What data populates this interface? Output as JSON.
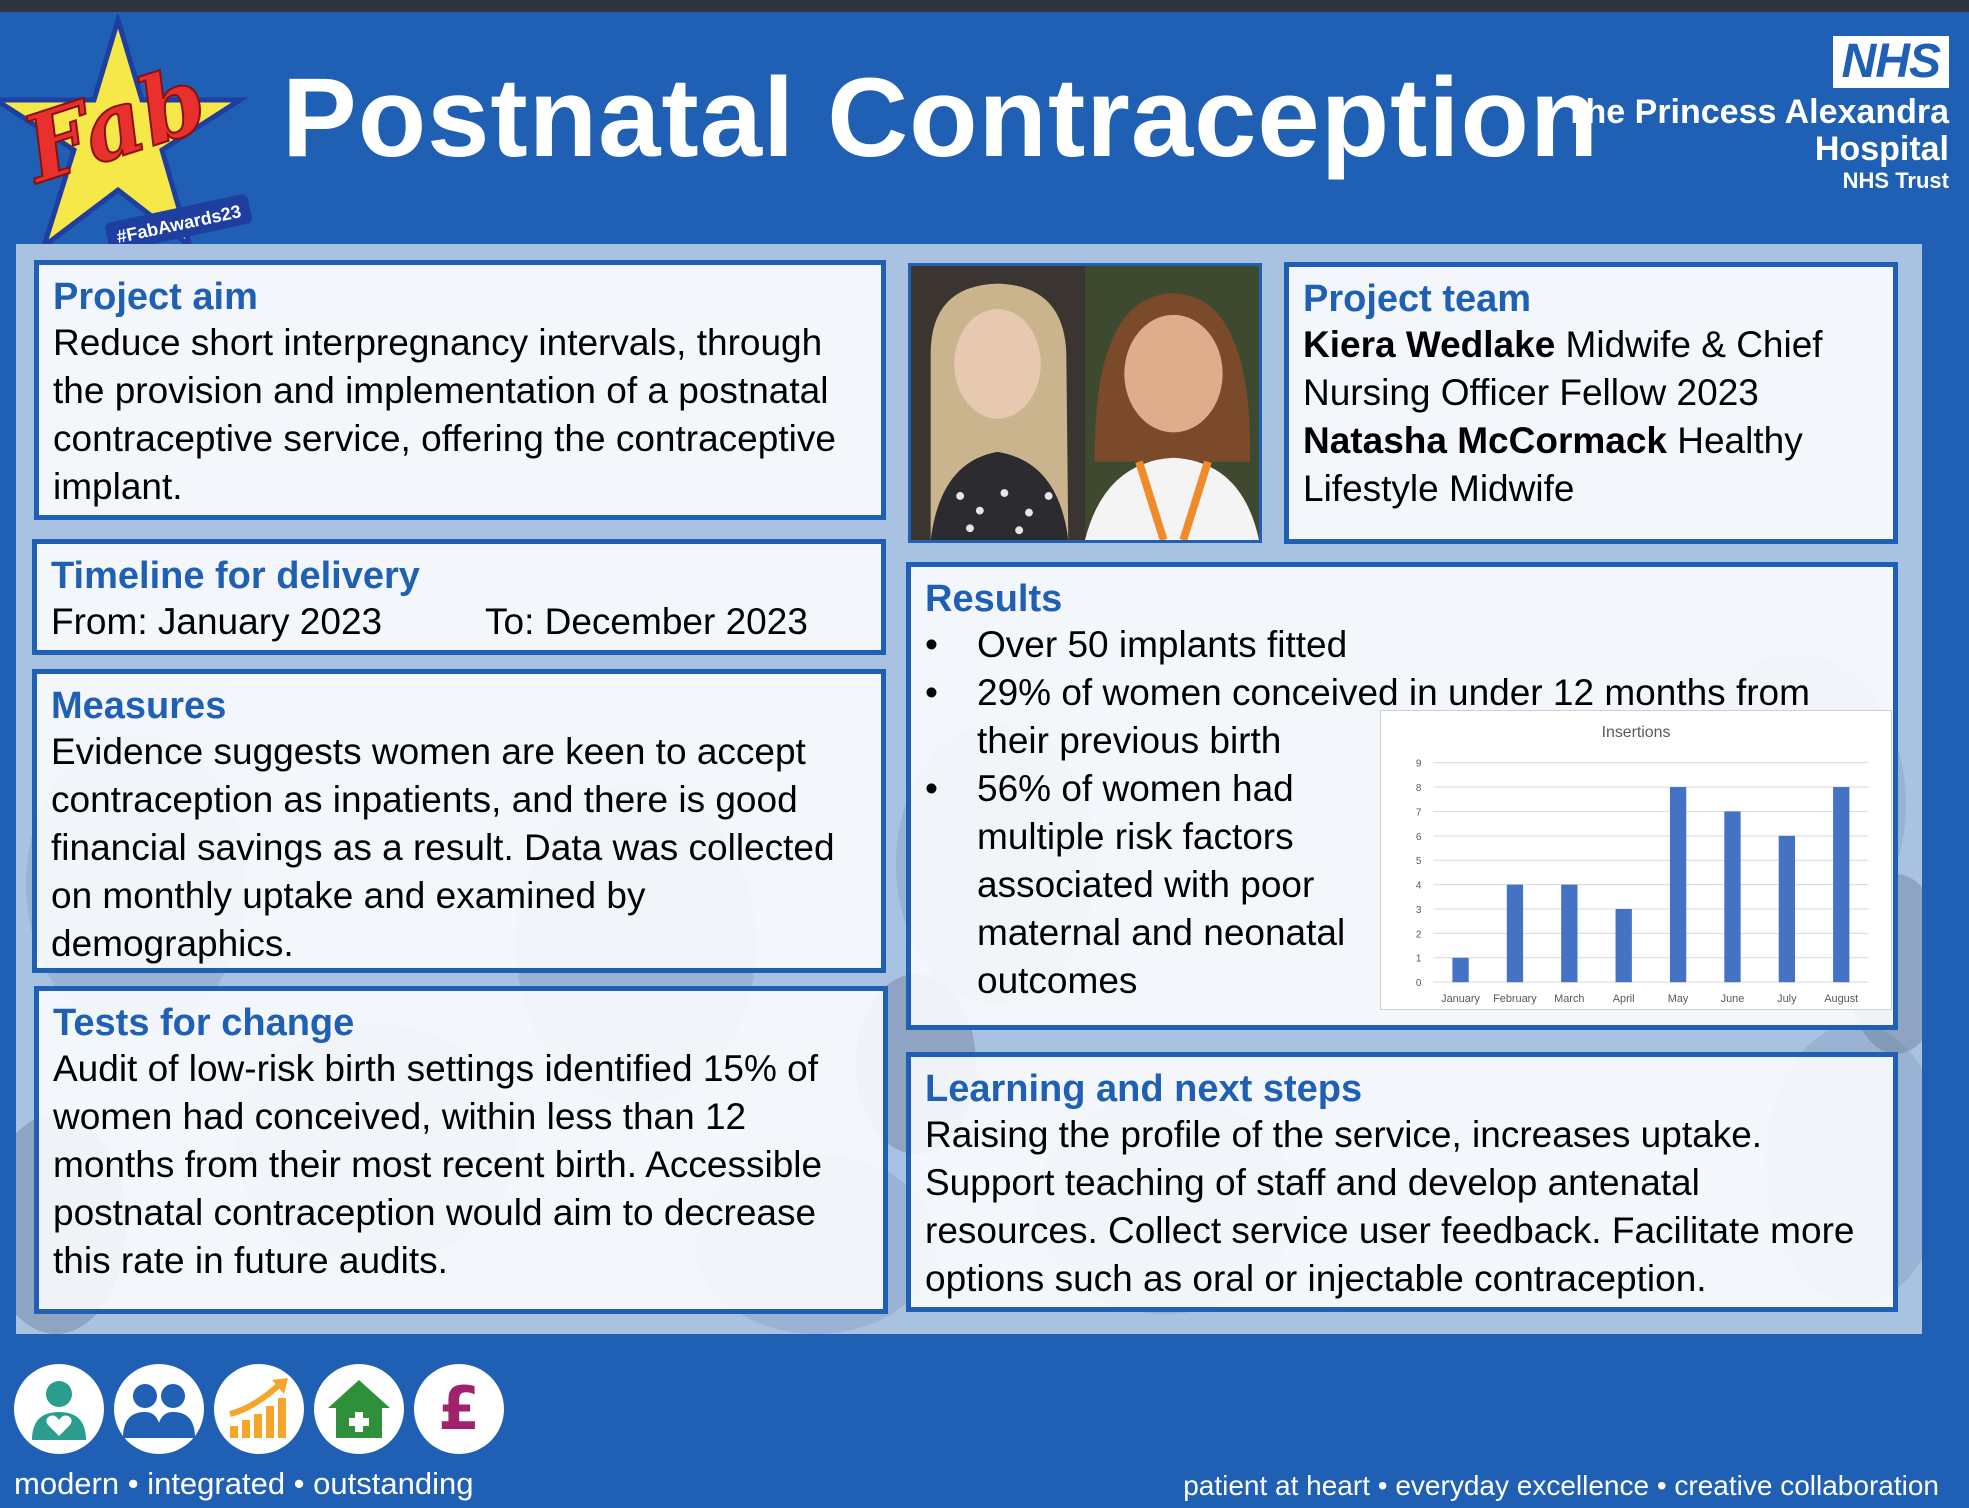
{
  "header": {
    "title": "Postnatal Contraception",
    "badge_word": "Fab",
    "badge_hashtag": "#FabAwards23",
    "nhs_logo": "NHS",
    "hospital_name_line1": "The Princess Alexandra",
    "hospital_name_line2": "Hospital",
    "hospital_trust": "NHS Trust"
  },
  "project_aim": {
    "heading": "Project aim",
    "text": "Reduce short interpregnancy intervals, through the provision and implementation of a postnatal contraceptive service, offering the contraceptive implant."
  },
  "timeline": {
    "heading": "Timeline for delivery",
    "from": "From: January 2023",
    "to": "To: December 2023"
  },
  "measures": {
    "heading": "Measures",
    "text": "Evidence suggests women are keen to accept contraception as inpatients, and there is good financial savings as a result. Data was collected on monthly uptake and examined by demographics."
  },
  "tests_for_change": {
    "heading": "Tests for change",
    "text": "Audit of low-risk birth settings identified 15% of women had conceived, within less than 12 months from their most recent birth. Accessible postnatal contraception would aim to decrease this rate in future audits."
  },
  "project_team": {
    "heading": "Project team",
    "member1_name": "Kiera Wedlake",
    "member1_role": " Midwife & Chief Nursing Officer Fellow 2023",
    "member2_name": "Natasha McCormack",
    "member2_role": " Healthy Lifestyle Midwife"
  },
  "results": {
    "heading": "Results",
    "bullet1": "Over 50 implants fitted",
    "bullet2_line1": "29% of women conceived in under 12 months from",
    "bullet2_line2": "their previous birth",
    "bullet3": "56% of women had multiple risk factors associated with poor maternal and neonatal outcomes"
  },
  "learning": {
    "heading": "Learning and next steps",
    "text": "Raising the profile of the service, increases uptake. Support teaching of staff and develop antenatal resources. Collect service user feedback. Facilitate more options such as oral or injectable contraception."
  },
  "chart_data": {
    "type": "bar",
    "title": "Insertions",
    "categories": [
      "January",
      "February",
      "March",
      "April",
      "May",
      "June",
      "July",
      "August"
    ],
    "values": [
      1,
      4,
      4,
      3,
      8,
      7,
      6,
      8
    ],
    "ylim": [
      0,
      9
    ],
    "yticks": [
      0,
      1,
      2,
      3,
      4,
      5,
      6,
      7,
      8,
      9
    ],
    "grid": true,
    "color": "#4472c4"
  },
  "footer": {
    "tagline_left": "modern • integrated • outstanding",
    "tagline_right": "patient at heart • everyday excellence • creative collaboration",
    "icons": [
      "person-heart-icon",
      "people-icon",
      "growth-chart-icon",
      "home-plus-icon",
      "pound-icon"
    ],
    "pound_symbol": "£"
  },
  "colors": {
    "brand_blue": "#1f5fb4",
    "teal": "#2a9d8f",
    "orange": "#f4a52a",
    "green": "#2f8f3a",
    "magenta": "#a0226c"
  }
}
